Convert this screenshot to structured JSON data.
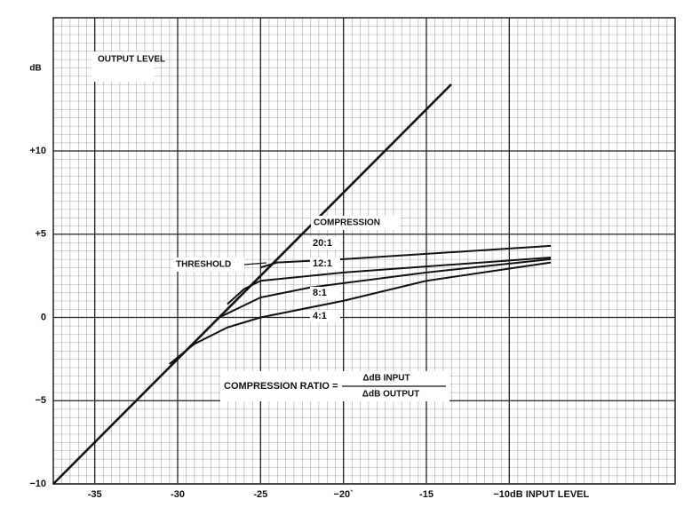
{
  "chart_data": {
    "type": "line",
    "y_label": "OUTPUT LEVEL",
    "y_unit": "dB",
    "annotations": {
      "compression": "COMPRESSION",
      "threshold": "THRESHOLD",
      "formula": "COMPRESSION RATIO =",
      "numerator": "ΔdB INPUT",
      "denominator": "ΔdB OUTPUT"
    },
    "xlim": [
      -37.5,
      0
    ],
    "ylim": [
      -10,
      18
    ],
    "xticks": [
      -35,
      -30,
      -25,
      {
        "value": -20,
        "label": "−20`"
      },
      -15,
      {
        "value": -10,
        "label": "−10dB INPUT LEVEL"
      }
    ],
    "yticks": [
      {
        "value": -10,
        "label": "−10"
      },
      {
        "value": -5,
        "label": "−5"
      },
      0,
      {
        "value": 5,
        "label": "+5"
      },
      {
        "value": 10,
        "label": "+10"
      }
    ],
    "grid": true,
    "series": [
      {
        "color": "#111",
        "x": [
          -37.5,
          -13.5
        ],
        "values": [
          -10,
          14
        ]
      },
      {
        "name": "20:1",
        "color": "#111",
        "x": [
          -25,
          -24,
          -20,
          -7.5
        ],
        "values": [
          3,
          3.3,
          3.5,
          4.3
        ]
      },
      {
        "name": "12:1",
        "color": "#111",
        "x": [
          -27,
          -26,
          -25,
          -20,
          -7.5
        ],
        "values": [
          0.8,
          1.7,
          2.2,
          2.7,
          3.6
        ]
      },
      {
        "name": "8:1",
        "color": "#111",
        "x": [
          -28.5,
          -27.5,
          -25,
          -22,
          -15,
          -7.5
        ],
        "values": [
          -1,
          0,
          1.2,
          1.8,
          2.7,
          3.5
        ]
      },
      {
        "name": "4:1",
        "color": "#111",
        "x": [
          -30.5,
          -29,
          -27,
          -25,
          -20,
          -15,
          -7.5
        ],
        "values": [
          -2.8,
          -1.6,
          -0.6,
          0,
          1,
          2.2,
          3.3
        ]
      }
    ]
  }
}
